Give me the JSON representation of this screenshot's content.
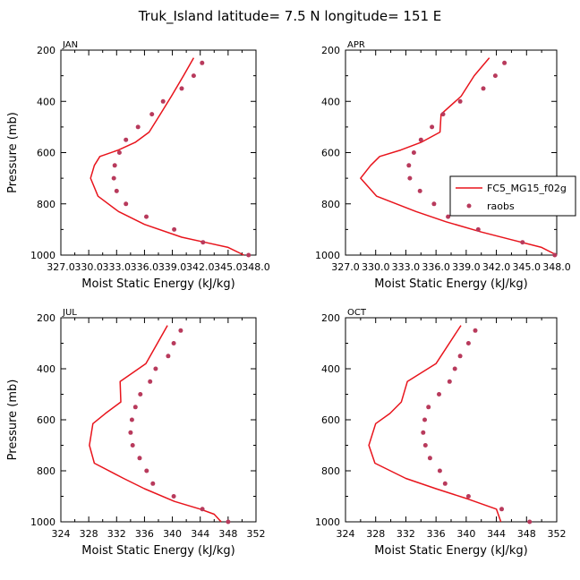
{
  "title": "Truk_Island   latitude= 7.5 N longitude= 151 E",
  "colors": {
    "model": "#e8141c",
    "obs": "#b83a5c",
    "axis": "#000000"
  },
  "legend": {
    "model": "FC5_MG15_f02g",
    "obs": "raobs"
  },
  "chart_data": [
    {
      "type": "line",
      "panel": "JAN",
      "xlabel": "Moist Static Energy (kJ/kg)",
      "ylabel": "Pressure (mb)",
      "xlim": [
        327,
        348
      ],
      "ylim": [
        1000,
        200
      ],
      "xticks": [
        327,
        330,
        333,
        336,
        339,
        342,
        345,
        348
      ],
      "xtick_labels": [
        "327.0",
        "330.0",
        "333.0",
        "336.0",
        "339.0",
        "342.0",
        "345.0",
        "348.0"
      ],
      "yticks": [
        200,
        400,
        600,
        800,
        1000
      ],
      "series": [
        {
          "name": "FC5_MG15_f02g",
          "kind": "line",
          "points": [
            [
              341.3,
              230
            ],
            [
              340.2,
              300
            ],
            [
              338.9,
              380
            ],
            [
              337.7,
              450
            ],
            [
              336.5,
              520
            ],
            [
              335.0,
              560
            ],
            [
              333.2,
              590
            ],
            [
              331.2,
              615
            ],
            [
              330.6,
              650
            ],
            [
              330.2,
              700
            ],
            [
              331.0,
              770
            ],
            [
              333.2,
              830
            ],
            [
              336.0,
              880
            ],
            [
              340.0,
              930
            ],
            [
              342.5,
              950
            ],
            [
              345.0,
              970
            ],
            [
              346.7,
              1000
            ]
          ]
        },
        {
          "name": "raobs",
          "kind": "scatter",
          "points": [
            [
              342.2,
              250
            ],
            [
              341.3,
              300
            ],
            [
              340.0,
              350
            ],
            [
              338.0,
              400
            ],
            [
              336.8,
              450
            ],
            [
              335.3,
              500
            ],
            [
              334.0,
              550
            ],
            [
              333.3,
              600
            ],
            [
              332.8,
              650
            ],
            [
              332.7,
              700
            ],
            [
              333.0,
              750
            ],
            [
              334.0,
              800
            ],
            [
              336.2,
              850
            ],
            [
              339.2,
              900
            ],
            [
              342.3,
              950
            ],
            [
              347.2,
              1000
            ]
          ]
        }
      ]
    },
    {
      "type": "line",
      "panel": "APR",
      "xlabel": "Moist Static Energy (kJ/kg)",
      "ylabel": "",
      "xlim": [
        327,
        348
      ],
      "ylim": [
        1000,
        200
      ],
      "xticks": [
        327,
        330,
        333,
        336,
        339,
        342,
        345,
        348
      ],
      "xtick_labels": [
        "327.0",
        "330.0",
        "333.0",
        "336.0",
        "339.0",
        "342.0",
        "345.0",
        "348.0"
      ],
      "yticks": [
        200,
        400,
        600,
        800,
        1000
      ],
      "legend": true,
      "series": [
        {
          "name": "FC5_MG15_f02g",
          "kind": "line",
          "points": [
            [
              341.3,
              230
            ],
            [
              339.8,
              300
            ],
            [
              338.5,
              380
            ],
            [
              336.5,
              450
            ],
            [
              336.4,
              520
            ],
            [
              334.5,
              560
            ],
            [
              332.5,
              590
            ],
            [
              330.4,
              615
            ],
            [
              329.5,
              650
            ],
            [
              328.5,
              700
            ],
            [
              330.1,
              770
            ],
            [
              334.0,
              830
            ],
            [
              337.0,
              870
            ],
            [
              340.5,
              910
            ],
            [
              343.5,
              940
            ],
            [
              346.5,
              970
            ],
            [
              348.0,
              1000
            ]
          ]
        },
        {
          "name": "raobs",
          "kind": "scatter",
          "points": [
            [
              342.8,
              250
            ],
            [
              341.9,
              300
            ],
            [
              340.7,
              350
            ],
            [
              338.4,
              400
            ],
            [
              336.7,
              450
            ],
            [
              335.6,
              500
            ],
            [
              334.5,
              550
            ],
            [
              333.8,
              600
            ],
            [
              333.3,
              650
            ],
            [
              333.4,
              700
            ],
            [
              334.4,
              750
            ],
            [
              335.8,
              800
            ],
            [
              337.2,
              850
            ],
            [
              340.2,
              900
            ],
            [
              344.6,
              950
            ],
            [
              347.8,
              1000
            ]
          ]
        }
      ]
    },
    {
      "type": "line",
      "panel": "JUL",
      "xlabel": "Moist Static Energy (kJ/kg)",
      "ylabel": "Pressure (mb)",
      "xlim": [
        324,
        352
      ],
      "ylim": [
        1000,
        200
      ],
      "xticks": [
        324,
        328,
        332,
        336,
        340,
        344,
        348,
        352
      ],
      "xtick_labels": [
        "324",
        "328",
        "332",
        "336",
        "340",
        "344",
        "348",
        "352"
      ],
      "yticks": [
        200,
        400,
        600,
        800,
        1000
      ],
      "series": [
        {
          "name": "FC5_MG15_f02g",
          "kind": "line",
          "points": [
            [
              339.3,
              230
            ],
            [
              336.2,
              380
            ],
            [
              332.5,
              450
            ],
            [
              332.6,
              530
            ],
            [
              330.4,
              575
            ],
            [
              328.6,
              615
            ],
            [
              328.1,
              700
            ],
            [
              328.8,
              770
            ],
            [
              333.0,
              830
            ],
            [
              336.0,
              870
            ],
            [
              340.3,
              920
            ],
            [
              344.0,
              950
            ],
            [
              346.0,
              970
            ],
            [
              347.0,
              1000
            ]
          ]
        },
        {
          "name": "raobs",
          "kind": "scatter",
          "points": [
            [
              341.2,
              250
            ],
            [
              340.2,
              300
            ],
            [
              339.4,
              350
            ],
            [
              337.6,
              400
            ],
            [
              336.8,
              450
            ],
            [
              335.4,
              500
            ],
            [
              334.7,
              550
            ],
            [
              334.2,
              600
            ],
            [
              334.0,
              650
            ],
            [
              334.3,
              700
            ],
            [
              335.3,
              750
            ],
            [
              336.3,
              800
            ],
            [
              337.2,
              850
            ],
            [
              340.2,
              900
            ],
            [
              344.3,
              950
            ],
            [
              348.0,
              1000
            ]
          ]
        }
      ]
    },
    {
      "type": "line",
      "panel": "OCT",
      "xlabel": "Moist Static Energy (kJ/kg)",
      "ylabel": "",
      "xlim": [
        324,
        352
      ],
      "ylim": [
        1000,
        200
      ],
      "xticks": [
        324,
        328,
        332,
        336,
        340,
        344,
        348,
        352
      ],
      "xtick_labels": [
        "324",
        "328",
        "332",
        "336",
        "340",
        "344",
        "348",
        "352"
      ],
      "yticks": [
        200,
        400,
        600,
        800,
        1000
      ],
      "series": [
        {
          "name": "FC5_MG15_f02g",
          "kind": "line",
          "points": [
            [
              339.3,
              230
            ],
            [
              336.0,
              380
            ],
            [
              332.2,
              450
            ],
            [
              331.4,
              530
            ],
            [
              329.9,
              575
            ],
            [
              328.0,
              615
            ],
            [
              327.1,
              700
            ],
            [
              327.9,
              770
            ],
            [
              332.0,
              830
            ],
            [
              336.0,
              870
            ],
            [
              340.2,
              910
            ],
            [
              344.0,
              950
            ],
            [
              344.6,
              1000
            ]
          ]
        },
        {
          "name": "raobs",
          "kind": "scatter",
          "points": [
            [
              341.2,
              250
            ],
            [
              340.3,
              300
            ],
            [
              339.2,
              350
            ],
            [
              338.5,
              400
            ],
            [
              337.8,
              450
            ],
            [
              336.4,
              500
            ],
            [
              335.0,
              550
            ],
            [
              334.5,
              600
            ],
            [
              334.3,
              650
            ],
            [
              334.6,
              700
            ],
            [
              335.2,
              750
            ],
            [
              336.5,
              800
            ],
            [
              337.2,
              850
            ],
            [
              340.3,
              900
            ],
            [
              344.7,
              950
            ],
            [
              348.4,
              1000
            ]
          ]
        }
      ]
    }
  ]
}
